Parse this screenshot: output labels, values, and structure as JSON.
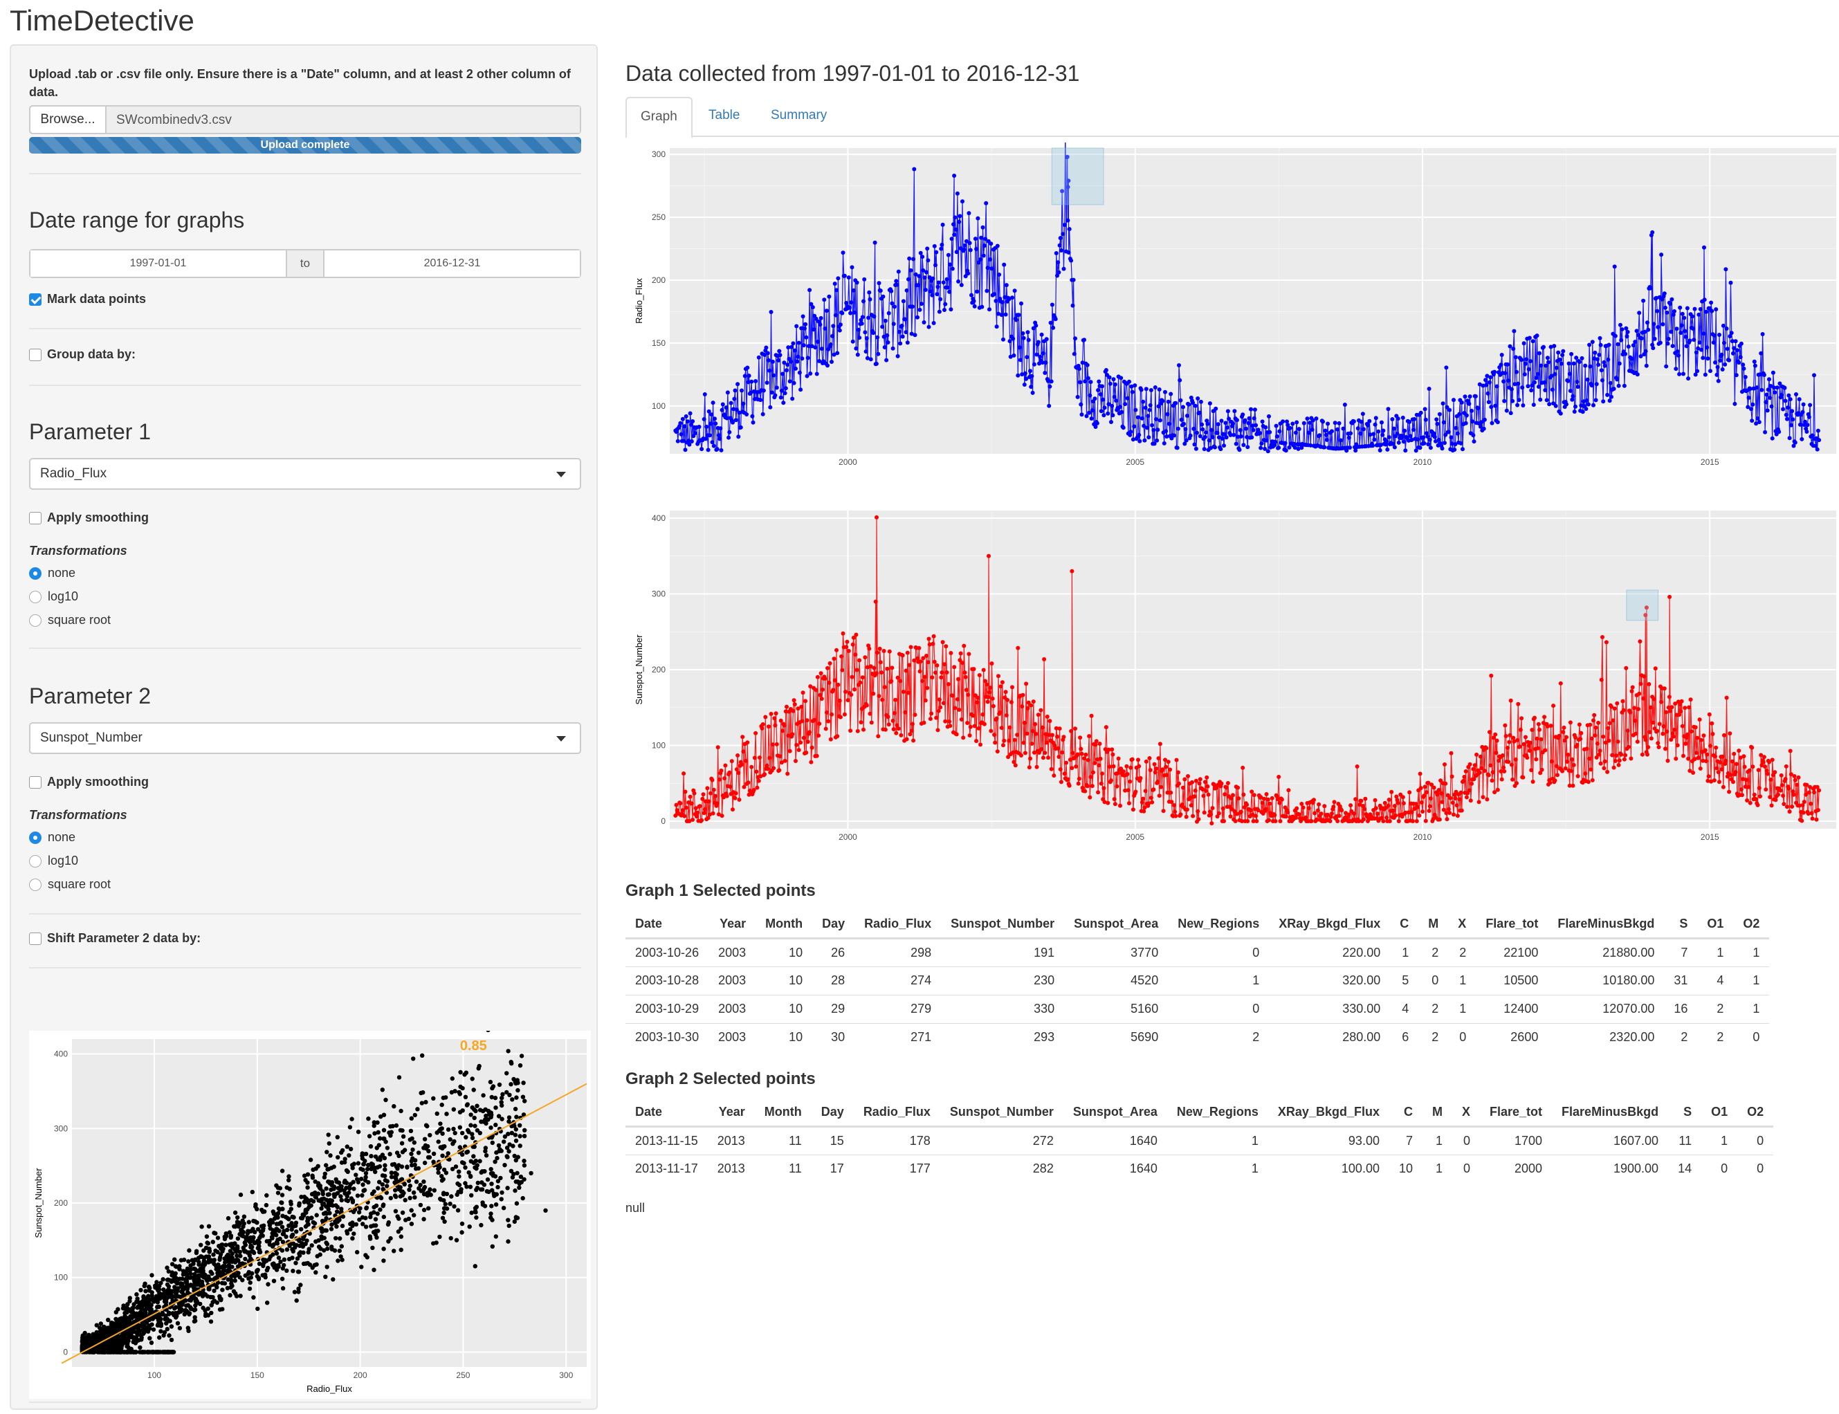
{
  "app": {
    "title": "TimeDetective"
  },
  "sidebar": {
    "upload_help": "Upload .tab or .csv file only. Ensure there is a \"Date\" column, and at least 2 other column of data.",
    "browse_label": "Browse...",
    "file_name": "SWcombinedv3.csv",
    "progress_text": "Upload complete",
    "progress_fraction": 1.0,
    "date_range_title": "Date range for graphs",
    "date_start": "1997-01-01",
    "date_sep": "to",
    "date_end": "2016-12-31",
    "mark_points_label": "Mark data points",
    "mark_points_checked": true,
    "group_label": "Group data by:",
    "group_checked": false,
    "param1": {
      "title": "Parameter 1",
      "selected": "Radio_Flux",
      "smoothing_label": "Apply smoothing",
      "smoothing_checked": false,
      "transform_label": "Transformations",
      "options": [
        "none",
        "log10",
        "square root"
      ],
      "selected_option": "none"
    },
    "param2": {
      "title": "Parameter 2",
      "selected": "Sunspot_Number",
      "smoothing_label": "Apply smoothing",
      "smoothing_checked": false,
      "transform_label": "Transformations",
      "options": [
        "none",
        "log10",
        "square root"
      ],
      "selected_option": "none"
    },
    "shift_label": "Shift Parameter 2 data by:",
    "shift_checked": false
  },
  "main": {
    "title": "Data collected from 1997-01-01 to 2016-12-31",
    "tabs": [
      {
        "label": "Graph",
        "active": true
      },
      {
        "label": "Table",
        "active": false
      },
      {
        "label": "Summary",
        "active": false
      }
    ],
    "graph1_title": "Graph 1 Selected points",
    "graph2_title": "Graph 2 Selected points",
    "columns": [
      "Date",
      "Year",
      "Month",
      "Day",
      "Radio_Flux",
      "Sunspot_Number",
      "Sunspot_Area",
      "New_Regions",
      "XRay_Bkgd_Flux",
      "C",
      "M",
      "X",
      "Flare_tot",
      "FlareMinusBkgd",
      "S",
      "O1",
      "O2"
    ],
    "graph1_rows": [
      [
        "2003-10-26",
        "2003",
        "10",
        "26",
        "298",
        "191",
        "3770",
        "0",
        "220.00",
        "1",
        "2",
        "2",
        "22100",
        "21880.00",
        "7",
        "1",
        "1"
      ],
      [
        "2003-10-28",
        "2003",
        "10",
        "28",
        "274",
        "230",
        "4520",
        "1",
        "320.00",
        "5",
        "0",
        "1",
        "10500",
        "10180.00",
        "31",
        "4",
        "1"
      ],
      [
        "2003-10-29",
        "2003",
        "10",
        "29",
        "279",
        "330",
        "5160",
        "0",
        "330.00",
        "4",
        "2",
        "1",
        "12400",
        "12070.00",
        "16",
        "2",
        "1"
      ],
      [
        "2003-10-30",
        "2003",
        "10",
        "30",
        "271",
        "293",
        "5690",
        "2",
        "280.00",
        "6",
        "2",
        "0",
        "2600",
        "2320.00",
        "2",
        "2",
        "0"
      ]
    ],
    "graph2_rows": [
      [
        "2013-11-15",
        "2013",
        "11",
        "15",
        "178",
        "272",
        "1640",
        "1",
        "93.00",
        "7",
        "1",
        "0",
        "1700",
        "1607.00",
        "11",
        "1",
        "0"
      ],
      [
        "2013-11-17",
        "2013",
        "11",
        "17",
        "177",
        "282",
        "1640",
        "1",
        "100.00",
        "10",
        "1",
        "0",
        "2000",
        "1900.00",
        "14",
        "0",
        "0"
      ]
    ],
    "null_text": "null"
  },
  "chart_data": [
    {
      "type": "line",
      "ylabel": "Radio_Flux",
      "xlabel": "",
      "color": "#0000ff",
      "xlim": [
        1996.9,
        2017.2
      ],
      "ylim": [
        62,
        305
      ],
      "xticks": [
        2000,
        2005,
        2010,
        2015
      ],
      "yticks": [
        100,
        150,
        200,
        250,
        300
      ],
      "x": [
        1997.0,
        1997.5,
        1998.0,
        1998.5,
        1999.0,
        1999.5,
        2000.0,
        2000.5,
        2001.0,
        2001.5,
        2002.0,
        2002.5,
        2003.0,
        2003.5,
        2003.8,
        2004.0,
        2004.5,
        2005.0,
        2005.5,
        2006.0,
        2006.5,
        2007.0,
        2007.5,
        2008.0,
        2008.5,
        2009.0,
        2009.5,
        2010.0,
        2010.5,
        2011.0,
        2011.5,
        2012.0,
        2012.5,
        2013.0,
        2013.5,
        2014.0,
        2014.5,
        2015.0,
        2015.5,
        2016.0,
        2016.5,
        2016.9
      ],
      "y": [
        74,
        75,
        95,
        118,
        130,
        158,
        180,
        165,
        175,
        200,
        225,
        210,
        150,
        125,
        270,
        115,
        105,
        95,
        92,
        85,
        80,
        77,
        73,
        71,
        68,
        70,
        72,
        77,
        82,
        98,
        120,
        130,
        118,
        125,
        140,
        165,
        150,
        155,
        125,
        100,
        88,
        75
      ],
      "selection": {
        "x0": 2003.55,
        "x1": 2004.45,
        "y0": 260,
        "y1": 305
      }
    },
    {
      "type": "line",
      "ylabel": "Sunspot_Number",
      "xlabel": "",
      "color": "#ff0000",
      "xlim": [
        1996.9,
        2017.2
      ],
      "ylim": [
        -10,
        410
      ],
      "xticks": [
        2000,
        2005,
        2010,
        2015
      ],
      "yticks": [
        0,
        100,
        200,
        300,
        400
      ],
      "x": [
        1997.0,
        1997.5,
        1998.0,
        1998.5,
        1999.0,
        1999.5,
        2000.0,
        2000.5,
        2001.0,
        2001.5,
        2002.0,
        2002.5,
        2003.0,
        2003.5,
        2004.0,
        2004.5,
        2005.0,
        2005.5,
        2006.0,
        2006.5,
        2007.0,
        2007.5,
        2008.0,
        2008.5,
        2009.0,
        2009.5,
        2010.0,
        2010.5,
        2011.0,
        2011.5,
        2012.0,
        2012.5,
        2013.0,
        2013.5,
        2014.0,
        2014.5,
        2015.0,
        2015.5,
        2016.0,
        2016.5,
        2016.9
      ],
      "y": [
        10,
        20,
        50,
        90,
        110,
        140,
        180,
        170,
        160,
        180,
        170,
        150,
        120,
        100,
        80,
        60,
        50,
        40,
        30,
        25,
        15,
        10,
        5,
        3,
        5,
        8,
        20,
        30,
        60,
        90,
        95,
        85,
        100,
        120,
        150,
        110,
        90,
        70,
        50,
        35,
        20
      ],
      "selection": {
        "x0": 2013.55,
        "x1": 2014.1,
        "y0": 265,
        "y1": 305
      }
    },
    {
      "type": "scatter",
      "xlabel": "Radio_Flux",
      "ylabel": "Sunspot_Number",
      "xlim": [
        60,
        310
      ],
      "ylim": [
        -20,
        420
      ],
      "xticks": [
        100,
        150,
        200,
        250,
        300
      ],
      "yticks": [
        0,
        100,
        200,
        300,
        400
      ],
      "correlation_label": "0.85",
      "fit": {
        "x0": 55,
        "y0": -15,
        "x1": 310,
        "y1": 360
      },
      "series": [
        {
          "name": "points",
          "x": [
            70,
            80,
            90,
            100,
            110,
            120,
            130,
            140,
            150,
            160,
            170,
            180,
            190,
            200,
            210,
            220,
            230,
            240,
            250,
            260,
            270,
            280,
            290
          ],
          "y": [
            0,
            20,
            40,
            60,
            75,
            90,
            110,
            125,
            140,
            160,
            170,
            185,
            200,
            215,
            225,
            235,
            250,
            260,
            270,
            280,
            290,
            300,
            190
          ]
        }
      ]
    }
  ]
}
